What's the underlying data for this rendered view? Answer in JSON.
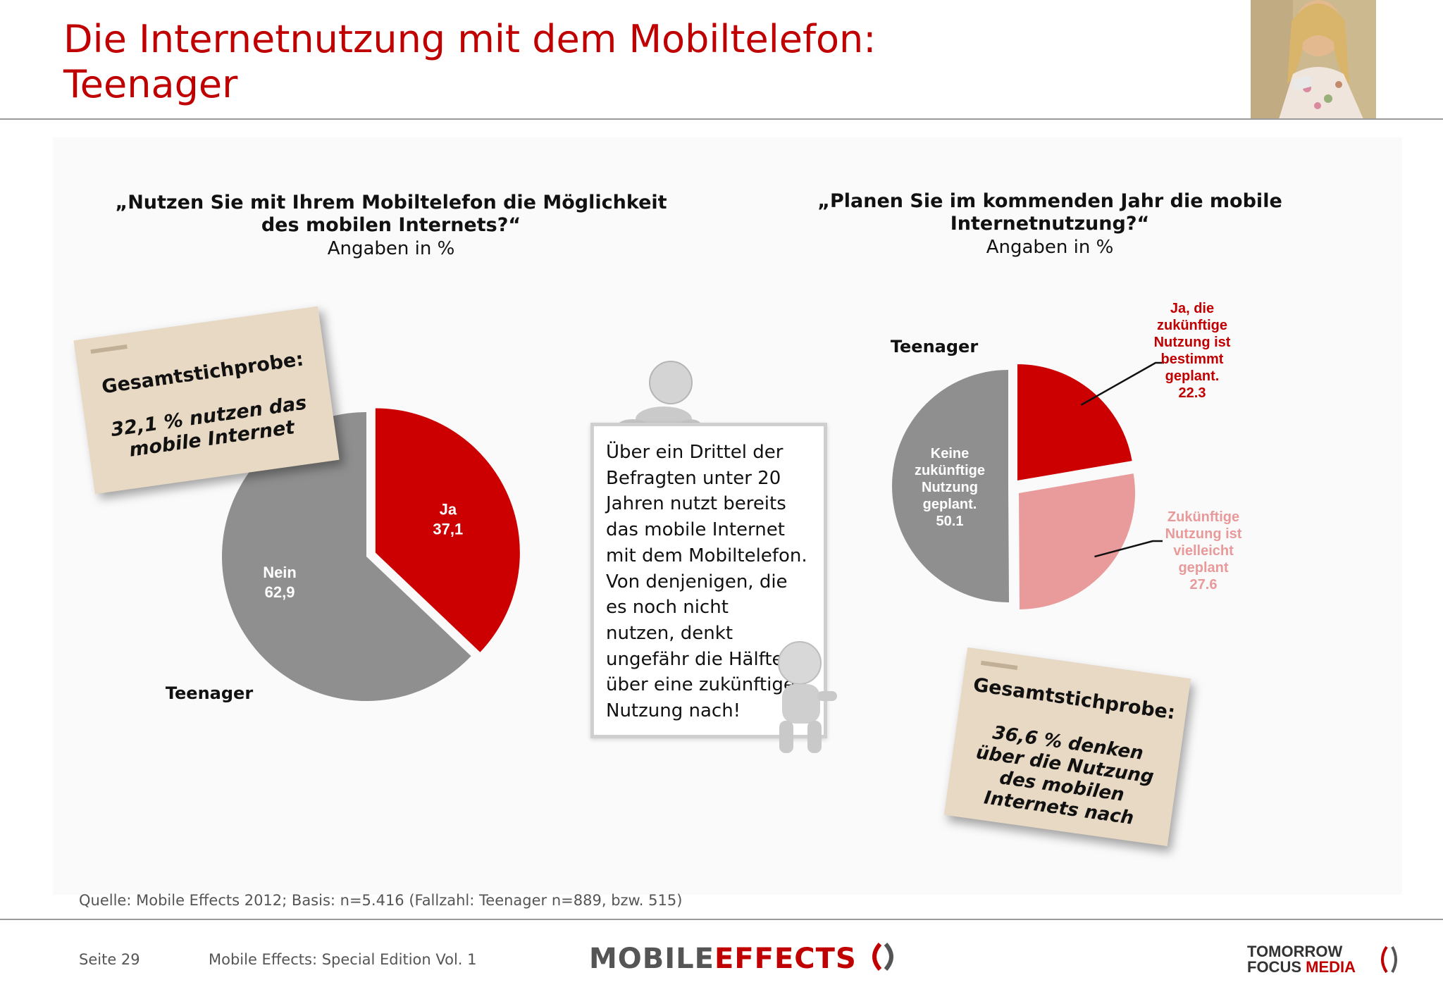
{
  "slide": {
    "title_line1": "Die Internetnutzung mit dem Mobiltelefon:",
    "title_line2": "Teenager",
    "page": "Seite 29",
    "edition": "Mobile Effects: Special Edition Vol. 1",
    "source": "Quelle: Mobile Effects 2012; Basis: n=5.416 (Fallzahl: Teenager n=889, bzw. 515)"
  },
  "logos": {
    "mobile_effects_a": "MOBILE",
    "mobile_effects_b": "EFFECTS",
    "tfm_line1": "TOMORROW",
    "tfm_line2": "FOCUS",
    "tfm_line3": "MEDIA"
  },
  "left_question": {
    "line1": "„Nutzen Sie mit Ihrem Mobiltelefon die Möglichkeit",
    "line2": "des mobilen Internets?“",
    "unit": "Angaben in %"
  },
  "right_question": {
    "line1": "„Planen Sie im kommenden Jahr die mobile",
    "line2": "Internetnutzung?“",
    "unit": "Angaben in %"
  },
  "note_left": {
    "heading": "Gesamtstichprobe:",
    "line1": "32,1 % nutzen das",
    "line2": "mobile Internet"
  },
  "note_right": {
    "heading": "Gesamtstichprobe:",
    "line1": "36,6 % denken",
    "line2": "über die Nutzung",
    "line3": "des mobilen",
    "line4": "Internets nach"
  },
  "board": {
    "line1": "Über ein Drittel der",
    "line2": "Befragten unter 20",
    "line3": "Jahren nutzt bereits",
    "line4": "das mobile Internet",
    "line5": "mit dem Mobiltelefon.",
    "line6": "Von denjenigen, die",
    "line7": "es noch nicht",
    "line8": "nutzen, denkt",
    "line9": "ungefähr die Hälfte",
    "line10": "über eine zukünftige",
    "line11": "Nutzung nach!"
  },
  "chart_data": [
    {
      "type": "pie",
      "group_label": "Teenager",
      "slices": [
        {
          "label": "Ja",
          "value": 37.1,
          "value_text": "37,1",
          "color": "#cc0000",
          "exploded": true
        },
        {
          "label": "Nein",
          "value": 62.9,
          "value_text": "62,9",
          "color": "#8f8f8f",
          "exploded": false
        }
      ]
    },
    {
      "type": "pie",
      "group_label": "Teenager",
      "slices": [
        {
          "label_lines": [
            "Ja, die",
            "zukünftige",
            "Nutzung ist",
            "bestimmt",
            "geplant."
          ],
          "value": 22.3,
          "value_text": "22.3",
          "color": "#cc0000",
          "text_color": "#c00000"
        },
        {
          "label_lines": [
            "Zukünftige",
            "Nutzung ist",
            "vielleicht",
            "geplant"
          ],
          "value": 27.6,
          "value_text": "27.6",
          "color": "#e99b9b",
          "text_color": "#e89a9a"
        },
        {
          "label_lines": [
            "Keine",
            "zukünftige",
            "Nutzung",
            "geplant."
          ],
          "value": 50.1,
          "value_text": "50.1",
          "color": "#8f8f8f",
          "text_color": "#ffffff"
        }
      ]
    }
  ]
}
